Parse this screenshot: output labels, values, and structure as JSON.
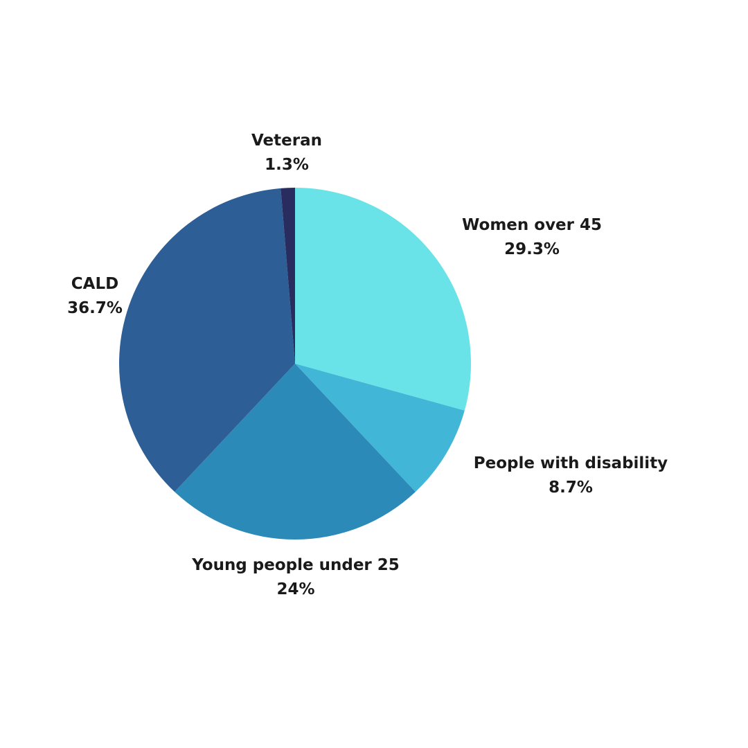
{
  "chart_data": {
    "type": "pie",
    "start_angle_deg": 0,
    "direction": "clockwise",
    "slices": [
      {
        "label": "Women over 45",
        "value": 29.3,
        "value_label": "29.3%",
        "color": "#6ae3e8"
      },
      {
        "label": "People with disability",
        "value": 8.7,
        "value_label": "8.7%",
        "color": "#42b6d6"
      },
      {
        "label": "Young people under 25",
        "value": 24,
        "value_label": "24%",
        "color": "#2c8ab8"
      },
      {
        "label": "CALD",
        "value": 36.7,
        "value_label": "36.7%",
        "color": "#2e5e96"
      },
      {
        "label": "Veteran",
        "value": 1.3,
        "value_label": "1.3%",
        "color": "#282c5e"
      }
    ]
  }
}
